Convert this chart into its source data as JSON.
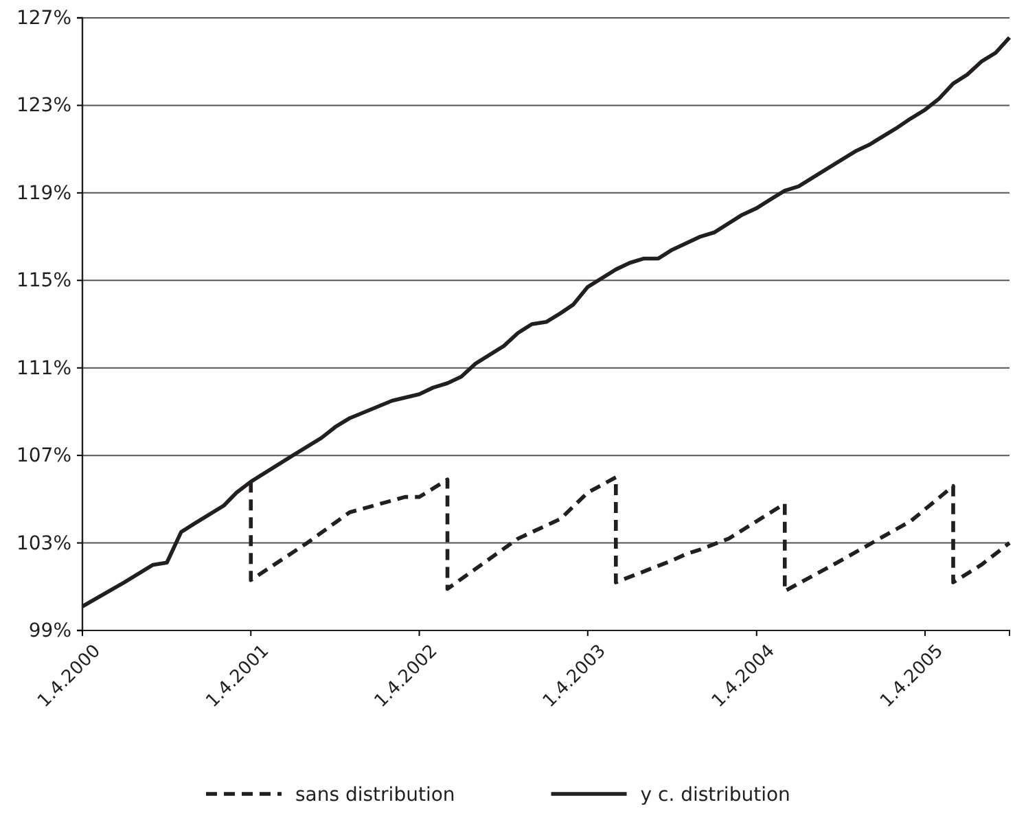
{
  "chart_data": {
    "type": "line",
    "legend": "bottom",
    "grid": "y",
    "xlim": [
      "2000-04",
      "2005-10"
    ],
    "xticks": [
      {
        "value": "2000-04",
        "label": "1.4.2000"
      },
      {
        "value": "2001-04",
        "label": "1.4.2001"
      },
      {
        "value": "2002-04",
        "label": "1.4.2002"
      },
      {
        "value": "2003-04",
        "label": "1.4.2003"
      },
      {
        "value": "2004-04",
        "label": "1.4.2004"
      },
      {
        "value": "2005-04",
        "label": "1.4.2005"
      }
    ],
    "ylim": [
      99,
      127
    ],
    "yticks": [
      {
        "value": 99,
        "label": "99%"
      },
      {
        "value": 103,
        "label": "103%"
      },
      {
        "value": 107,
        "label": "107%"
      },
      {
        "value": 111,
        "label": "111%"
      },
      {
        "value": 115,
        "label": "115%"
      },
      {
        "value": 119,
        "label": "119%"
      },
      {
        "value": 123,
        "label": "123%"
      },
      {
        "value": 127,
        "label": "127%"
      }
    ],
    "series": [
      {
        "name": "sans distribution",
        "color": "#231f20",
        "line_style": "dashed",
        "x": [
          "2001-04",
          "2001-04",
          "2001-08",
          "2001-11",
          "2002-03",
          "2002-04",
          "2002-06",
          "2002-06",
          "2002-11",
          "2003-02",
          "2003-04",
          "2003-06",
          "2003-06",
          "2003-10",
          "2003-11",
          "2003-12",
          "2004-02",
          "2004-06",
          "2004-06",
          "2004-10",
          "2005-01",
          "2005-03",
          "2005-06",
          "2005-06",
          "2005-08",
          "2005-10"
        ],
        "values": [
          105.8,
          101.3,
          103.0,
          104.4,
          105.1,
          105.1,
          105.9,
          100.9,
          103.2,
          104.1,
          105.3,
          106.0,
          101.2,
          102.2,
          102.5,
          102.7,
          103.2,
          104.8,
          100.8,
          102.2,
          103.3,
          104.0,
          105.6,
          101.2,
          102.0,
          103.0
        ]
      },
      {
        "name": "y c. distribution",
        "color": "#231f20",
        "line_style": "solid",
        "x": [
          "2000-04",
          "2000-07",
          "2000-09",
          "2000-10",
          "2000-11",
          "2000-12",
          "2001-02",
          "2001-03",
          "2001-04",
          "2001-07",
          "2001-09",
          "2001-10",
          "2001-11",
          "2002-02",
          "2002-04",
          "2002-05",
          "2002-06",
          "2002-07",
          "2002-08",
          "2002-10",
          "2002-11",
          "2002-12",
          "2003-01",
          "2003-02",
          "2003-03",
          "2003-04",
          "2003-06",
          "2003-07",
          "2003-08",
          "2003-09",
          "2003-10",
          "2003-12",
          "2004-01",
          "2004-03",
          "2004-04",
          "2004-05",
          "2004-06",
          "2004-07",
          "2004-10",
          "2004-11",
          "2004-12",
          "2005-02",
          "2005-03",
          "2005-04",
          "2005-05",
          "2005-06",
          "2005-07",
          "2005-08",
          "2005-09",
          "2005-10"
        ],
        "values": [
          100.1,
          101.2,
          102.0,
          102.1,
          103.5,
          103.9,
          104.7,
          105.3,
          105.8,
          107.0,
          107.8,
          108.3,
          108.7,
          109.5,
          109.8,
          110.1,
          110.3,
          110.6,
          111.2,
          112.0,
          112.6,
          113.0,
          113.1,
          113.5,
          113.9,
          114.7,
          115.5,
          115.8,
          116.0,
          116.0,
          116.4,
          117.0,
          117.2,
          118.0,
          118.3,
          118.7,
          119.1,
          119.3,
          120.5,
          120.9,
          121.2,
          122.0,
          122.4,
          122.8,
          123.3,
          124.0,
          124.4,
          125.0,
          125.4,
          126.1
        ]
      }
    ]
  }
}
